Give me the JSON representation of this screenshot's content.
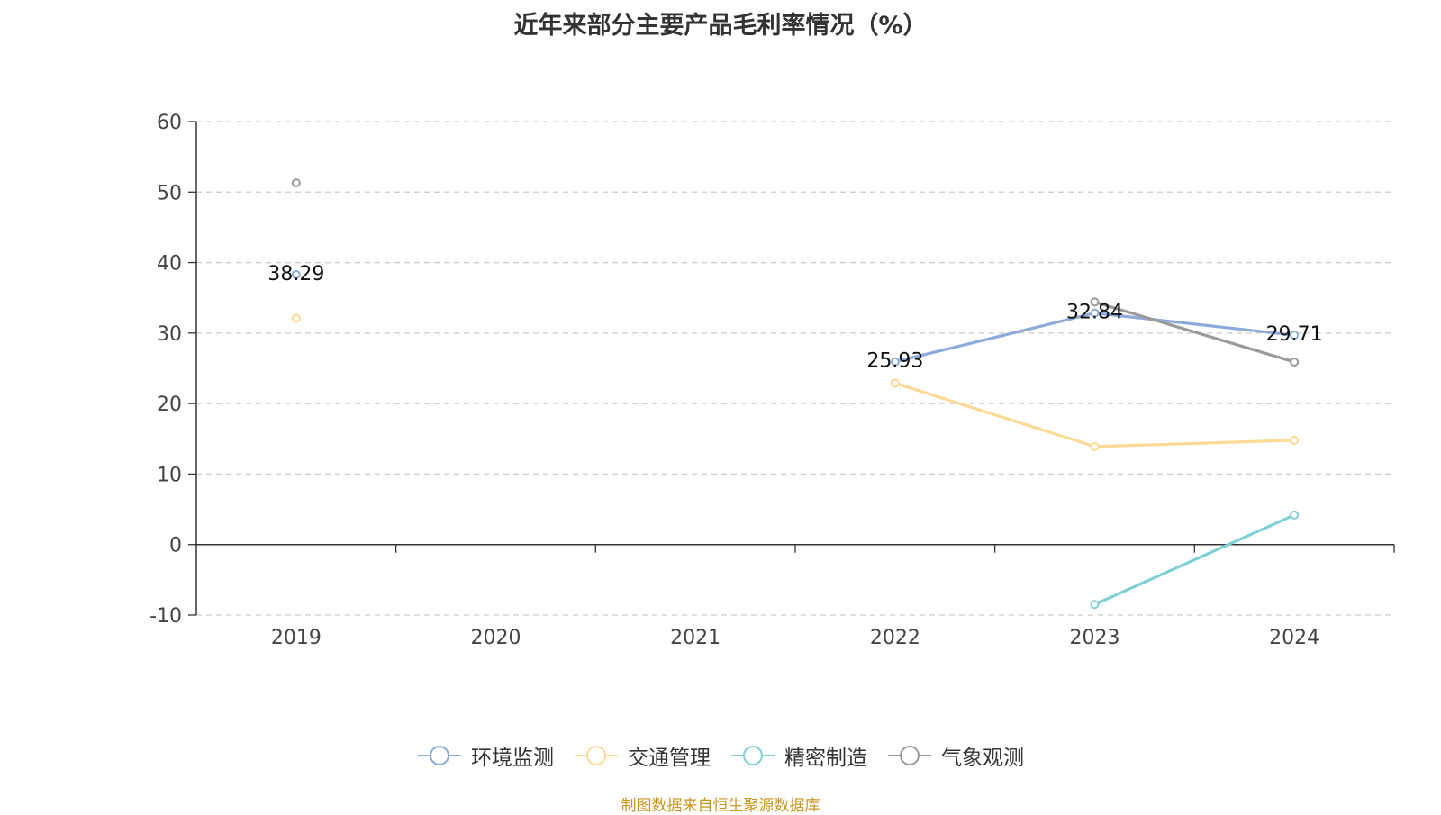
{
  "chart_data": {
    "type": "line",
    "title": "近年来部分主要产品毛利率情况（%）",
    "categories": [
      "2019",
      "2020",
      "2021",
      "2022",
      "2023",
      "2024"
    ],
    "ylim": [
      -10,
      60
    ],
    "yticks": [
      -10,
      0,
      10,
      20,
      30,
      40,
      50,
      60
    ],
    "grid": true,
    "legend_position": "bottom",
    "series": [
      {
        "name": "环境监测",
        "color": "#8eaadb",
        "values": [
          38.29,
          null,
          null,
          25.93,
          32.84,
          29.71
        ],
        "labeled": true
      },
      {
        "name": "交通管理",
        "color": "#fcd994",
        "values": [
          32.1,
          null,
          null,
          22.9,
          13.9,
          14.8
        ],
        "labeled": false
      },
      {
        "name": "精密制造",
        "color": "#7fd0d4",
        "values": [
          null,
          null,
          null,
          null,
          -8.5,
          4.2
        ],
        "labeled": false
      },
      {
        "name": "气象观测",
        "color": "#9a9a9a",
        "values": [
          51.3,
          null,
          null,
          null,
          34.4,
          25.9
        ],
        "labeled": false
      }
    ]
  },
  "source_note": "制图数据来自恒生聚源数据库"
}
